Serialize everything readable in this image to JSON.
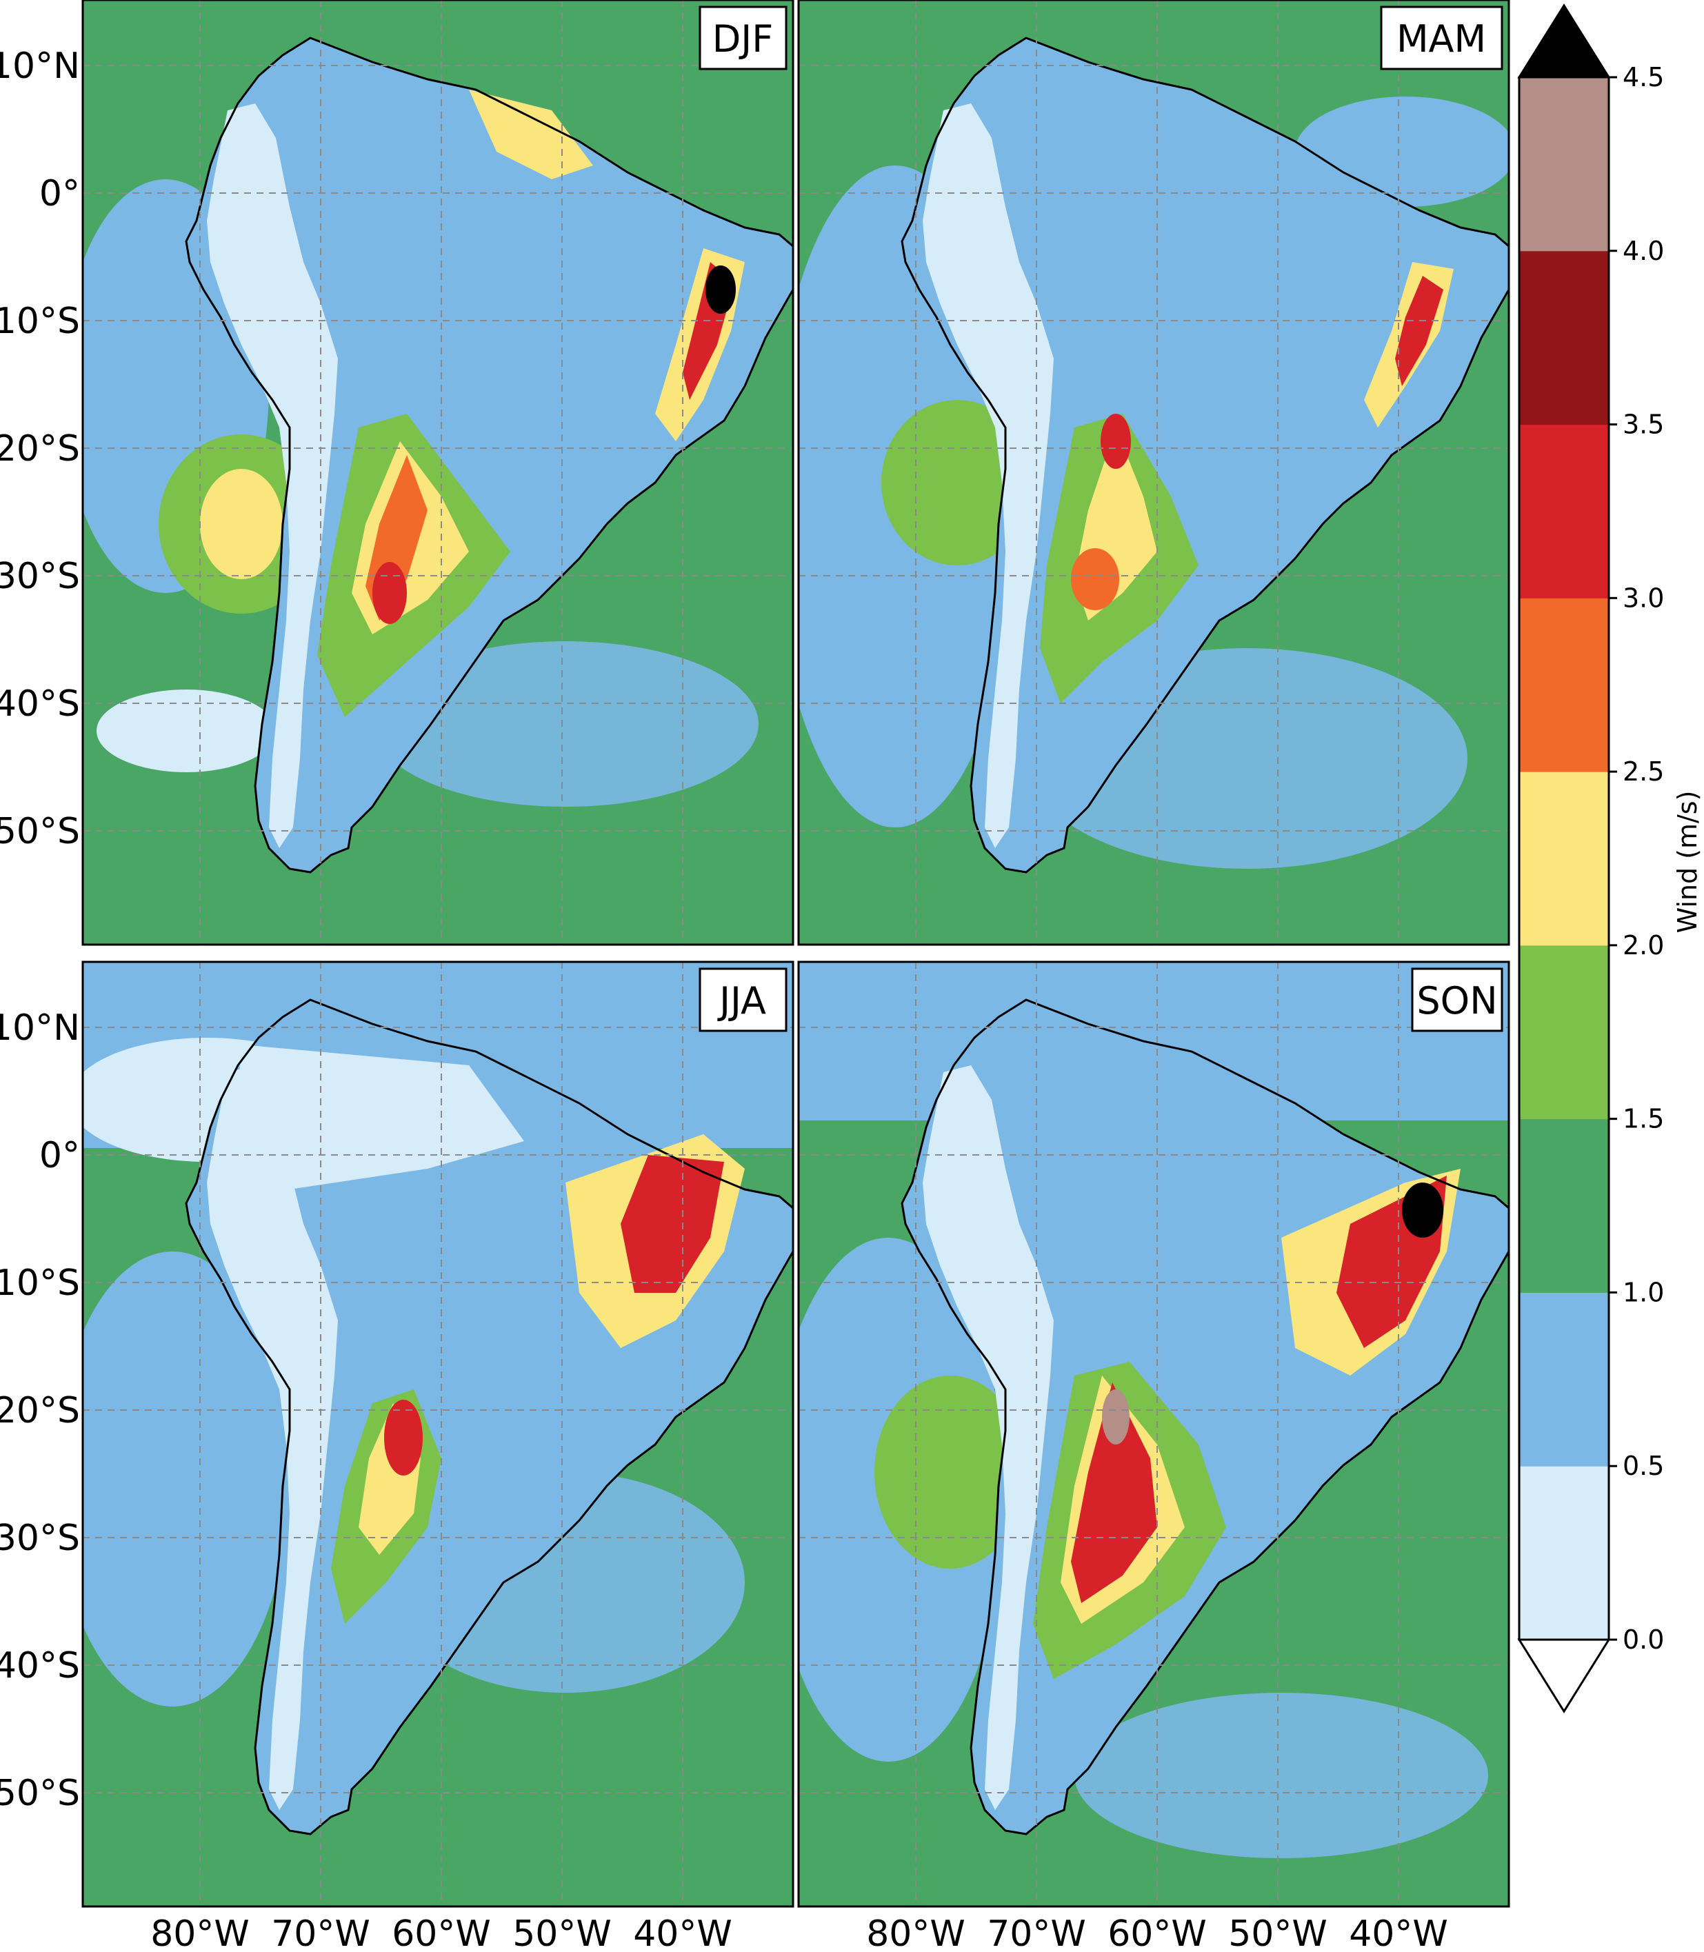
{
  "figure": {
    "panels": [
      {
        "label": "DJF"
      },
      {
        "label": "MAM"
      },
      {
        "label": "JJA"
      },
      {
        "label": "SON"
      }
    ],
    "lat_ticks": [
      "10°N",
      "0°",
      "10°S",
      "20°S",
      "30°S",
      "40°S",
      "50°S"
    ],
    "lon_ticks": [
      "80°W",
      "70°W",
      "60°W",
      "50°W",
      "40°W"
    ],
    "colorbar": {
      "title": "Wind (m/s)",
      "levels": [
        "0.0",
        "0.5",
        "1.0",
        "1.5",
        "2.0",
        "2.5",
        "3.0",
        "3.5",
        "4.0",
        "4.5"
      ],
      "colors": [
        "#d6ecf8",
        "#7bb8e5",
        "#4aa664",
        "#7cc24a",
        "#fbe57d",
        "#f26a2a",
        "#d62228",
        "#921618",
        "#b38f87"
      ],
      "over_color": "#000000",
      "under_color": "#ffffff"
    }
  },
  "colors": {
    "ocean_base": "#4aa664",
    "land_low": "#7bb8e5",
    "andes": "#d6ecf8",
    "coastline": "#000000",
    "grid": "#8a8a8a"
  }
}
